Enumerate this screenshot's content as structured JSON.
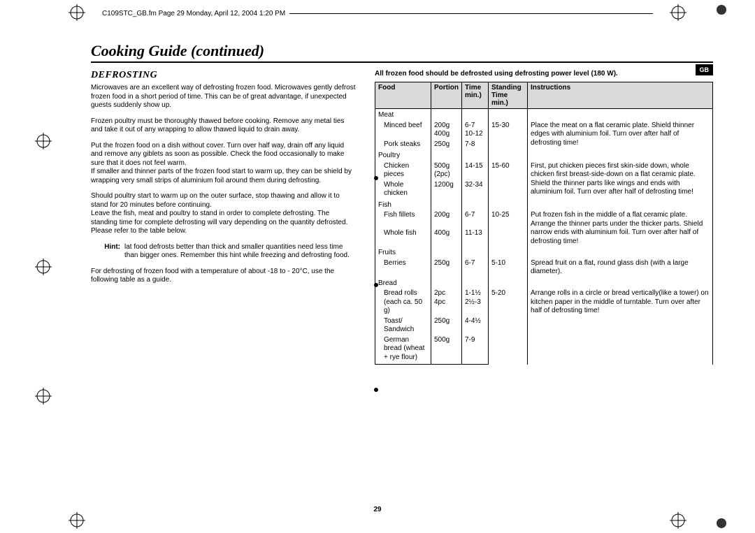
{
  "header": {
    "filename_line": "C109STC_GB.fm  Page 29  Monday, April 12, 2004  1:20 PM"
  },
  "title": "Cooking Guide (continued)",
  "section_head": "DEFROSTING",
  "gb_badge": "GB",
  "paragraphs": {
    "p1": "Microwaves are an excellent way of defrosting frozen food. Microwaves gently defrost frozen food in a short period of time. This can be of great advantage, if unexpected guests suddenly show up.",
    "p2": "Frozen poultry must be thoroughly thawed before cooking. Remove any metal ties and take it out of any wrapping to allow thawed liquid to drain away.",
    "p3": "Put the frozen food on a dish without cover. Turn over half way, drain off any liquid and remove any giblets as soon as possible. Check the food occasionally to make sure that it does not feel warm.",
    "p4": "If smaller and thinner parts of the frozen food start to warm up, they can be shield by wrapping very small strips of aluminium foil around them during defrosting.",
    "p5": "Should poultry start to warm up on the outer surface, stop thawing and allow it to stand for 20 minutes before continuing.",
    "p6": "Leave the fish, meat and poultry to stand in order to complete defrosting. The standing time for complete defrosting will vary depending on the quantity defrosted. Please refer to the table below.",
    "hint_label": "Hint:",
    "hint_text": "lat food defrosts better than thick and smaller quantities need less time than bigger ones. Remember this hint while freezing and defrosting food.",
    "p7": "For defrosting of frozen food with a temperature of about -18 to - 20°C, use the following table as a guide."
  },
  "table_note": "All frozen food should be defrosted using defrosting power level (180 W).",
  "table": {
    "headers": {
      "food": "Food",
      "portion": "Portion",
      "time": "Time\nmin.)",
      "standing": "Standing\nTime min.)",
      "instructions": "Instructions"
    },
    "groups": [
      {
        "name": "Meat",
        "rows": [
          {
            "food": "Minced beef",
            "portion": "200g\n400g",
            "time": "6-7\n10-12",
            "standing": "15-30",
            "instructions": "Place the meat on a flat ceramic plate. Shield thinner edges with aluminium foil. Turn over after half of defrosting time!"
          },
          {
            "food": "Pork steaks",
            "portion": "250g",
            "time": "7-8",
            "standing": "",
            "instructions": ""
          }
        ]
      },
      {
        "name": "Poultry",
        "rows": [
          {
            "food": "Chicken pieces",
            "portion": "500g\n(2pc)",
            "time": "14-15",
            "standing": "15-60",
            "instructions": "First, put chicken pieces first skin-side down, whole chicken first breast-side-down on a flat ceramic plate. Shield the thinner parts like wings and ends with aluminium foil. Turn over after half of defrosting time!"
          },
          {
            "food": "Whole chicken",
            "portion": "1200g",
            "time": "32-34",
            "standing": "",
            "instructions": ""
          }
        ]
      },
      {
        "name": "Fish",
        "rows": [
          {
            "food": "Fish fillets",
            "portion": "200g",
            "time": "6-7",
            "standing": "10-25",
            "instructions": "Put frozen fish in the middle of a flat ceramic plate. Arrange the thinner parts under the thicker parts. Shield narrow ends with aluminium foil. Turn over after half of defrosting time!"
          },
          {
            "food": "Whole fish",
            "portion": "400g",
            "time": "11-13",
            "standing": "",
            "instructions": ""
          }
        ]
      },
      {
        "name": "Fruits",
        "rows": [
          {
            "food": "Berries",
            "portion": "250g",
            "time": "6-7",
            "standing": "5-10",
            "instructions": "Spread fruit on a flat, round glass dish (with a large diameter)."
          }
        ]
      },
      {
        "name": "Bread",
        "rows": [
          {
            "food": "Bread rolls (each ca. 50 g)",
            "portion": "2pc\n4pc",
            "time": "1-1½\n2½-3",
            "standing": "5-20",
            "instructions": "Arrange rolls in a circle or bread vertically(like a tower) on kitchen paper in the middle of turntable. Turn over after half of defrosting time!"
          },
          {
            "food": "Toast/ Sandwich",
            "portion": "250g",
            "time": "4-4½",
            "standing": "",
            "instructions": ""
          },
          {
            "food": "German bread (wheat + rye flour)",
            "portion": "500g",
            "time": "7-9",
            "standing": "",
            "instructions": ""
          }
        ]
      }
    ]
  },
  "page_number": "29",
  "colors": {
    "text": "#000000",
    "bg": "#ffffff",
    "header_bg": "#d9d9d9"
  }
}
